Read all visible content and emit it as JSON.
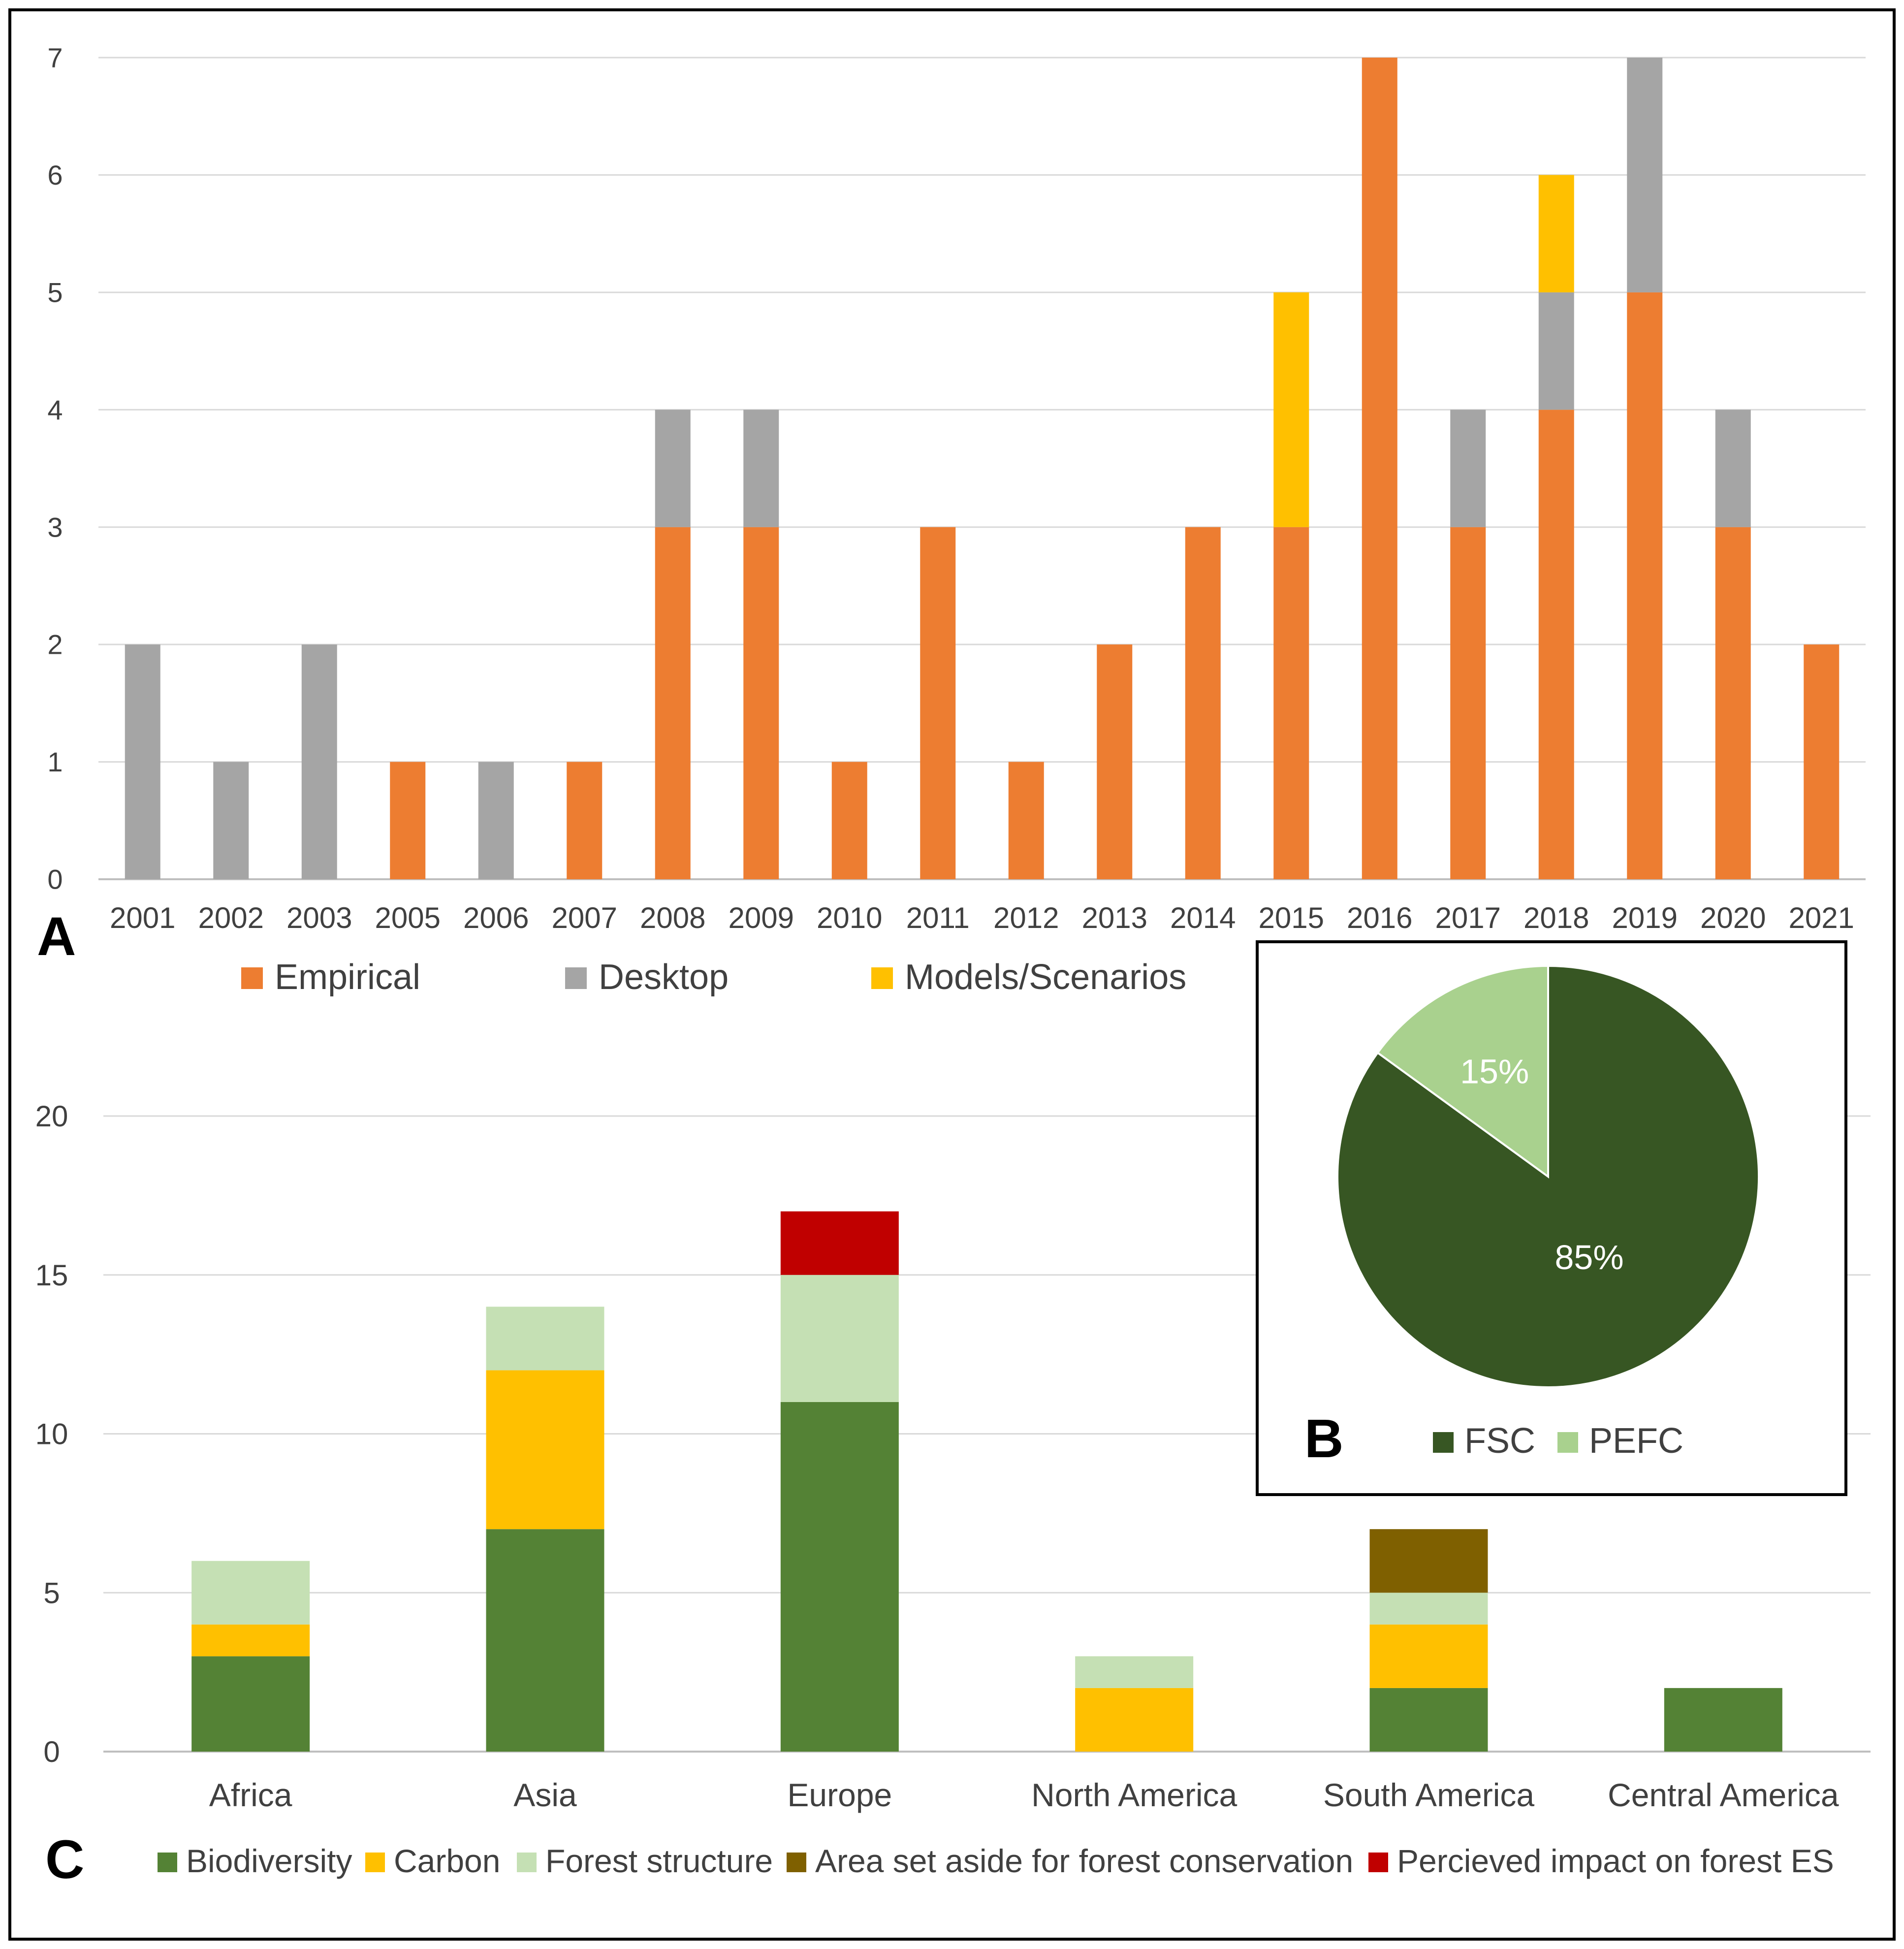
{
  "chart_data": [
    {
      "panel": "A",
      "type": "bar",
      "stacked": true,
      "categories": [
        "2001",
        "2002",
        "2003",
        "2005",
        "2006",
        "2007",
        "2008",
        "2009",
        "2010",
        "2011",
        "2012",
        "2013",
        "2014",
        "2015",
        "2016",
        "2017",
        "2018",
        "2019",
        "2020",
        "2021"
      ],
      "series": [
        {
          "name": "Empirical",
          "color": "#ED7D31",
          "values": [
            0,
            0,
            0,
            1,
            0,
            1,
            3,
            3,
            1,
            3,
            1,
            2,
            3,
            3,
            7,
            3,
            4,
            5,
            3,
            2
          ]
        },
        {
          "name": "Desktop",
          "color": "#A5A5A5",
          "values": [
            2,
            1,
            2,
            0,
            1,
            0,
            1,
            1,
            0,
            0,
            0,
            0,
            0,
            0,
            0,
            1,
            1,
            2,
            1,
            0
          ]
        },
        {
          "name": "Models/Scenarios",
          "color": "#FFC000",
          "values": [
            0,
            0,
            0,
            0,
            0,
            0,
            0,
            0,
            0,
            0,
            0,
            0,
            0,
            2,
            0,
            0,
            1,
            0,
            0,
            0
          ]
        }
      ],
      "yticks": [
        0,
        1,
        2,
        3,
        4,
        5,
        6,
        7
      ],
      "ylim": [
        0,
        7
      ],
      "grid": true,
      "legend_position": "bottom"
    },
    {
      "panel": "B",
      "type": "pie",
      "slices": [
        {
          "name": "FSC",
          "value": 85,
          "label": "85%",
          "color": "#375623"
        },
        {
          "name": "PEFC",
          "value": 15,
          "label": "15%",
          "color": "#A9D18E"
        }
      ],
      "legend_position": "bottom"
    },
    {
      "panel": "C",
      "type": "bar",
      "stacked": true,
      "categories": [
        "Africa",
        "Asia",
        "Europe",
        "North America",
        "South America",
        "Central America"
      ],
      "series": [
        {
          "name": "Biodiversity",
          "color": "#548235",
          "values": [
            3,
            7,
            11,
            0,
            2,
            2
          ]
        },
        {
          "name": "Carbon",
          "color": "#FFC000",
          "values": [
            1,
            5,
            0,
            2,
            2,
            0
          ]
        },
        {
          "name": "Forest structure",
          "color": "#C5E0B4",
          "values": [
            2,
            2,
            4,
            1,
            1,
            0
          ]
        },
        {
          "name": "Area set aside for forest conservation",
          "color": "#7F6000",
          "values": [
            0,
            0,
            0,
            0,
            2,
            0
          ]
        },
        {
          "name": "Percieved impact on forest  ES",
          "color": "#C00000",
          "values": [
            0,
            0,
            2,
            0,
            0,
            0
          ]
        }
      ],
      "yticks": [
        0,
        5,
        10,
        15,
        20
      ],
      "ylim": [
        0,
        20
      ],
      "grid": true,
      "legend_position": "bottom"
    }
  ],
  "panel_labels": {
    "a": "A",
    "b": "B",
    "c": "C"
  },
  "colors": {
    "border": "#000000",
    "grid": "#D9D9D9",
    "axis": "#BFBFBF",
    "text": "#404040"
  }
}
